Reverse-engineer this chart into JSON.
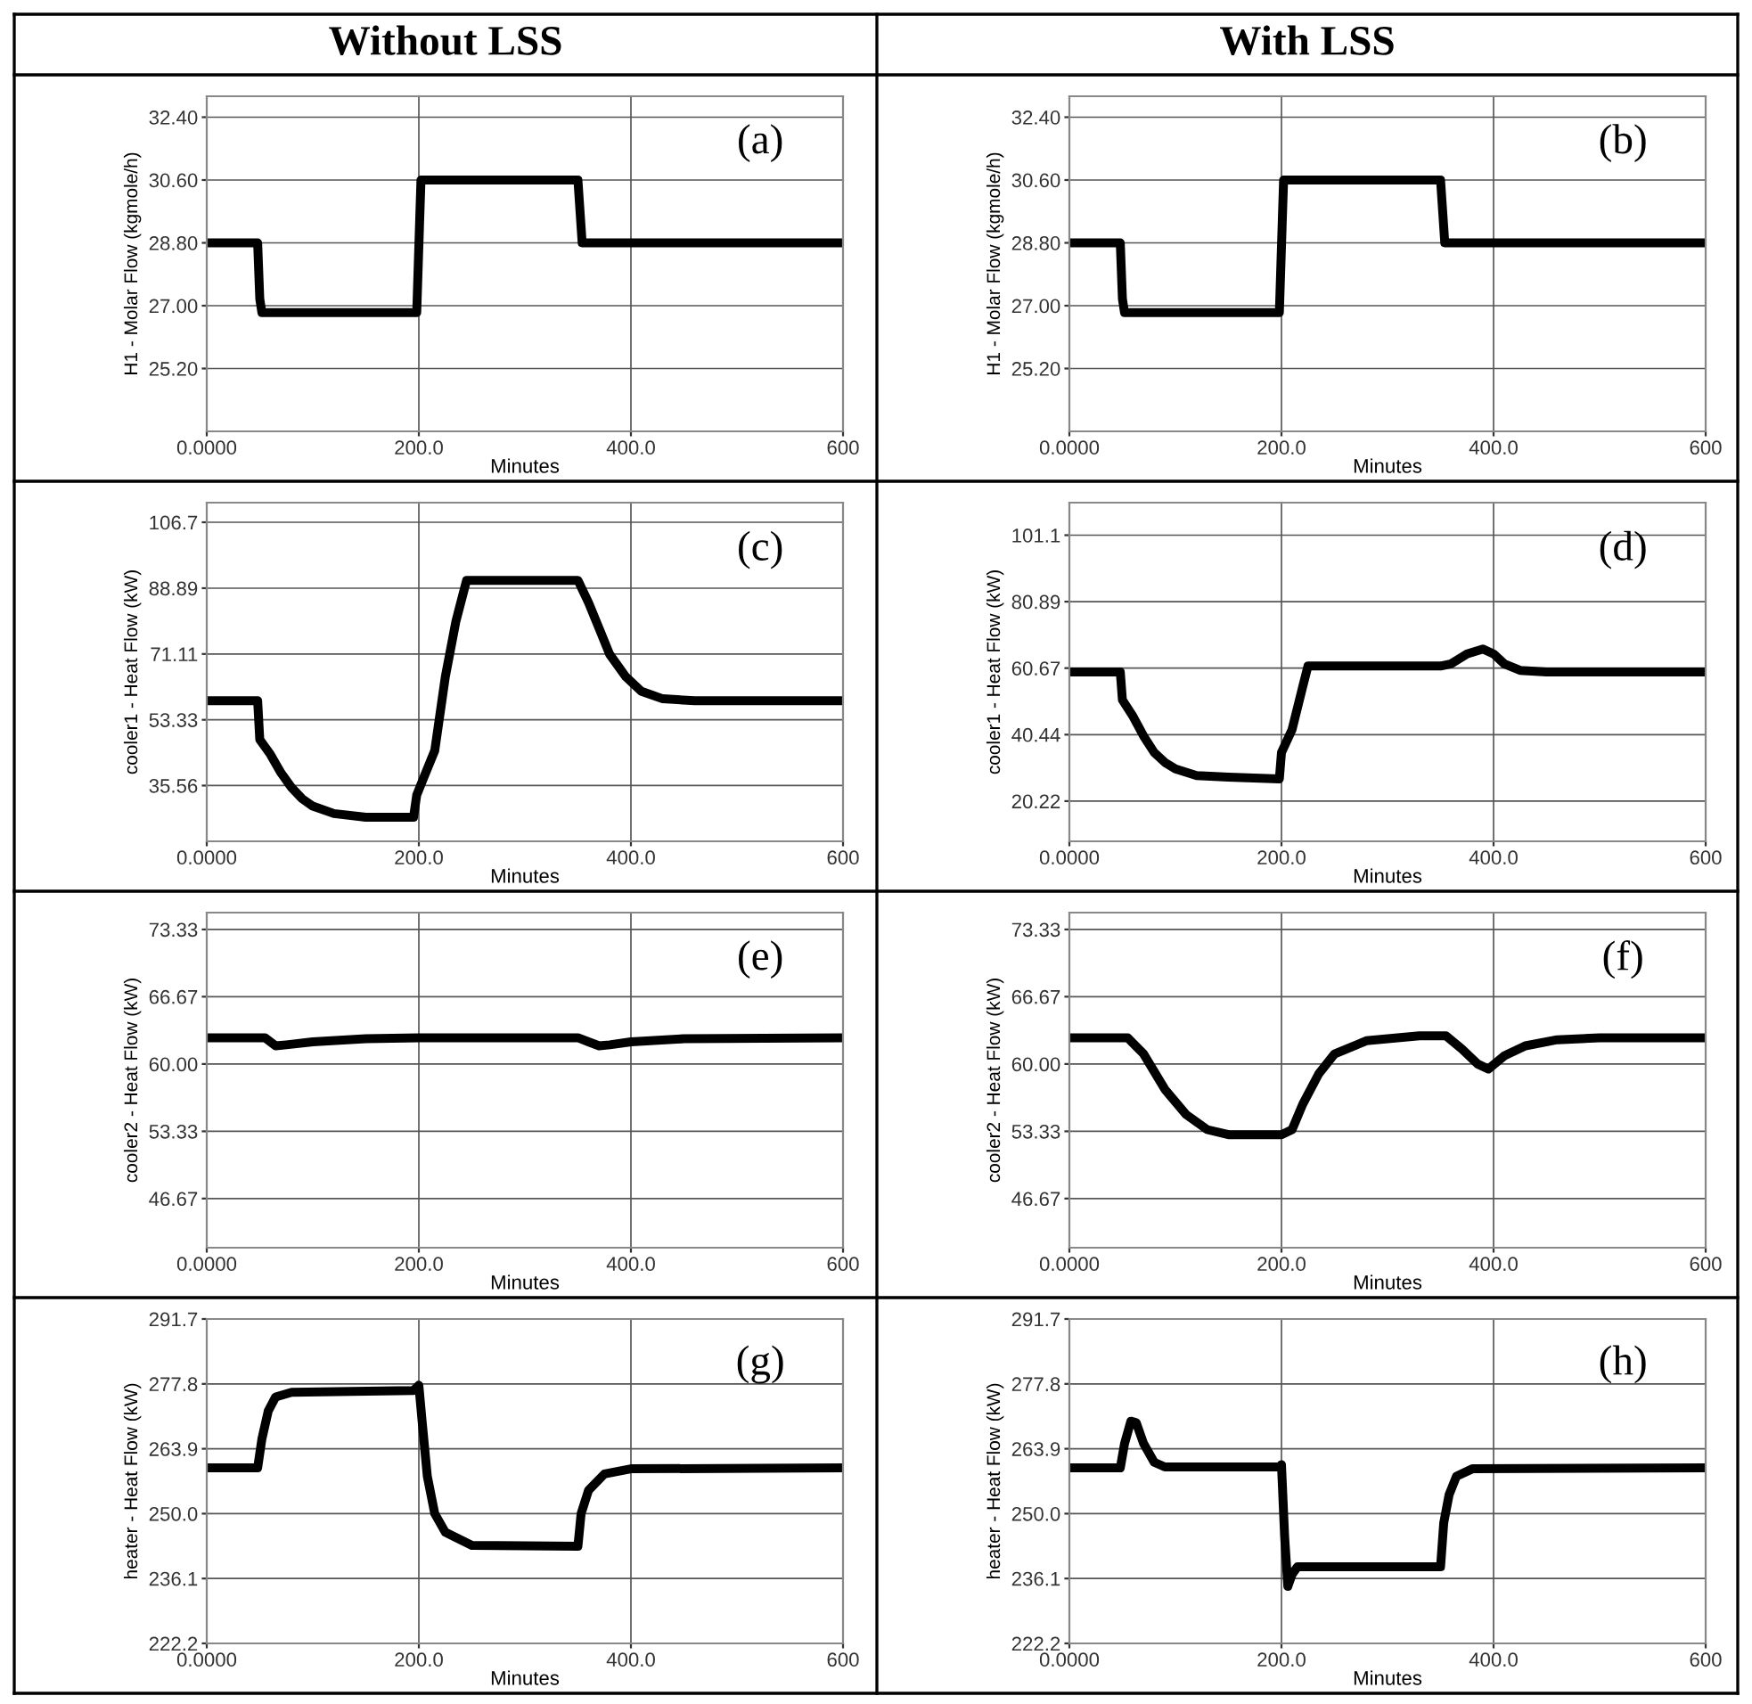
{
  "chart_data": [
    {
      "type": "line",
      "title": "Without LSS",
      "xlabel": "Minutes",
      "ylabel": "H1 - Molar Flow (kgmole/h)",
      "annotations": [
        "(a)"
      ],
      "xlim": [
        0,
        600
      ],
      "xticks": [
        {
          "value": 0,
          "label": "0.0000"
        },
        {
          "value": 200,
          "label": "200.0"
        },
        {
          "value": 400,
          "label": "400.0"
        },
        600
      ],
      "ylim": [
        23.4,
        33.0
      ],
      "yticks": [
        {
          "value": 25.2,
          "label": "25.20"
        },
        {
          "value": 27,
          "label": "27.00"
        },
        {
          "value": 28.8,
          "label": "28.80"
        },
        {
          "value": 30.6,
          "label": "30.60"
        },
        {
          "value": 32.4,
          "label": "32.40"
        }
      ],
      "grid": true,
      "series": [
        {
          "color": "#000000",
          "x": [
            0,
            48,
            50,
            52,
            198,
            202,
            350,
            354,
            600
          ],
          "values": [
            28.8,
            28.8,
            27.2,
            26.8,
            26.8,
            30.6,
            30.6,
            28.8,
            28.8
          ]
        }
      ]
    },
    {
      "type": "line",
      "title": "With LSS",
      "xlabel": "Minutes",
      "ylabel": "H1 - Molar Flow (kgmole/h)",
      "annotations": [
        "(b)"
      ],
      "xlim": [
        0,
        600
      ],
      "xticks": [
        {
          "value": 0,
          "label": "0.0000"
        },
        {
          "value": 200,
          "label": "200.0"
        },
        {
          "value": 400,
          "label": "400.0"
        },
        600
      ],
      "ylim": [
        23.4,
        33.0
      ],
      "yticks": [
        {
          "value": 25.2,
          "label": "25.20"
        },
        {
          "value": 27,
          "label": "27.00"
        },
        {
          "value": 28.8,
          "label": "28.80"
        },
        {
          "value": 30.6,
          "label": "30.60"
        },
        {
          "value": 32.4,
          "label": "32.40"
        }
      ],
      "grid": true,
      "series": [
        {
          "color": "#000000",
          "x": [
            0,
            48,
            50,
            52,
            198,
            202,
            350,
            354,
            600
          ],
          "values": [
            28.8,
            28.8,
            27.2,
            26.8,
            26.8,
            30.6,
            30.6,
            28.8,
            28.8
          ]
        }
      ]
    },
    {
      "type": "line",
      "xlabel": "Minutes",
      "ylabel": "cooler1 - Heat Flow (kW)",
      "annotations": [
        "(c)"
      ],
      "xlim": [
        0,
        600
      ],
      "xticks": [
        {
          "value": 0,
          "label": "0.0000"
        },
        {
          "value": 200,
          "label": "200.0"
        },
        {
          "value": 400,
          "label": "400.0"
        },
        600
      ],
      "ylim": [
        20.5,
        112
      ],
      "yticks": [
        35.56,
        53.33,
        71.11,
        88.89,
        106.7
      ],
      "grid": true,
      "series": [
        {
          "color": "#000000",
          "x": [
            0,
            48,
            50,
            60,
            70,
            80,
            90,
            100,
            120,
            150,
            195,
            198,
            205,
            215,
            225,
            235,
            245,
            350,
            360,
            370,
            380,
            395,
            410,
            430,
            460,
            600
          ],
          "values": [
            58.5,
            58.5,
            48,
            44,
            39,
            35,
            32,
            30,
            28,
            27,
            27,
            33,
            38,
            45,
            65,
            80,
            91,
            91,
            85,
            78,
            71,
            65,
            61,
            59,
            58.5,
            58.5
          ]
        }
      ]
    },
    {
      "type": "line",
      "xlabel": "Minutes",
      "ylabel": "cooler1 - Heat Flow (kW)",
      "annotations": [
        "(d)"
      ],
      "xlim": [
        0,
        600
      ],
      "xticks": [
        {
          "value": 0,
          "label": "0.0000"
        },
        {
          "value": 200,
          "label": "200.0"
        },
        {
          "value": 400,
          "label": "400.0"
        },
        600
      ],
      "ylim": [
        8,
        111
      ],
      "yticks": [
        20.22,
        40.44,
        60.67,
        80.89,
        101.1
      ],
      "grid": true,
      "series": [
        {
          "color": "#000000",
          "x": [
            0,
            48,
            50,
            60,
            70,
            80,
            90,
            100,
            120,
            150,
            198,
            200,
            210,
            220,
            225,
            350,
            360,
            375,
            390,
            400,
            410,
            425,
            450,
            600
          ],
          "values": [
            59.5,
            59.5,
            51,
            46,
            40,
            35,
            32,
            30,
            28,
            27.5,
            27,
            35,
            42,
            55,
            61.3,
            61.3,
            62,
            65,
            66.5,
            65,
            62,
            60,
            59.5,
            59.5
          ]
        }
      ]
    },
    {
      "type": "line",
      "xlabel": "Minutes",
      "ylabel": "cooler2 - Heat Flow (kW)",
      "annotations": [
        "(e)"
      ],
      "xlim": [
        0,
        600
      ],
      "xticks": [
        {
          "value": 0,
          "label": "0.0000"
        },
        {
          "value": 200,
          "label": "200.0"
        },
        {
          "value": 400,
          "label": "400.0"
        },
        600
      ],
      "ylim": [
        41.8,
        75
      ],
      "yticks": [
        46.67,
        53.33,
        {
          "value": 60,
          "label": "60.00"
        },
        66.67,
        73.33
      ],
      "grid": true,
      "series": [
        {
          "color": "#000000",
          "x": [
            0,
            55,
            65,
            75,
            100,
            150,
            200,
            350,
            360,
            370,
            380,
            400,
            450,
            600
          ],
          "values": [
            62.6,
            62.6,
            61.8,
            61.9,
            62.2,
            62.5,
            62.6,
            62.6,
            62.2,
            61.8,
            61.9,
            62.2,
            62.5,
            62.6
          ]
        }
      ]
    },
    {
      "type": "line",
      "xlabel": "Minutes",
      "ylabel": "cooler2 - Heat Flow (kW)",
      "annotations": [
        "(f)"
      ],
      "xlim": [
        0,
        600
      ],
      "xticks": [
        {
          "value": 0,
          "label": "0.0000"
        },
        {
          "value": 200,
          "label": "200.0"
        },
        {
          "value": 400,
          "label": "400.0"
        },
        600
      ],
      "ylim": [
        41.8,
        75
      ],
      "yticks": [
        46.67,
        53.33,
        {
          "value": 60,
          "label": "60.00"
        },
        66.67,
        73.33
      ],
      "grid": true,
      "series": [
        {
          "color": "#000000",
          "x": [
            0,
            55,
            70,
            90,
            110,
            130,
            150,
            200,
            210,
            220,
            235,
            250,
            280,
            330,
            355,
            370,
            385,
            395,
            410,
            430,
            460,
            500,
            600
          ],
          "values": [
            62.6,
            62.6,
            61,
            57.5,
            55,
            53.5,
            53,
            53,
            53.5,
            56,
            59,
            61,
            62.3,
            62.8,
            62.8,
            61.5,
            60,
            59.5,
            60.8,
            61.8,
            62.4,
            62.6,
            62.6
          ]
        }
      ]
    },
    {
      "type": "line",
      "xlabel": "Minutes",
      "ylabel": "heater - Heat Flow (kW)",
      "annotations": [
        "(g)"
      ],
      "xlim": [
        0,
        600
      ],
      "xticks": [
        {
          "value": 0,
          "label": "0.0000"
        },
        {
          "value": 200,
          "label": "200.0"
        },
        {
          "value": 400,
          "label": "400.0"
        },
        600
      ],
      "ylim": [
        222.2,
        291.7
      ],
      "yticks": [
        222.2,
        236.1,
        {
          "value": 250,
          "label": "250.0"
        },
        263.9,
        277.8,
        291.7
      ],
      "grid": true,
      "series": [
        {
          "color": "#000000",
          "x": [
            0,
            48,
            52,
            58,
            65,
            80,
            195,
            200,
            203,
            208,
            215,
            225,
            250,
            350,
            353,
            360,
            375,
            400,
            600
          ],
          "values": [
            259.8,
            259.8,
            266,
            272,
            275,
            276,
            276.4,
            277.5,
            270,
            258,
            250,
            246,
            243.2,
            243,
            250,
            255,
            258.5,
            259.6,
            259.8
          ]
        }
      ]
    },
    {
      "type": "line",
      "xlabel": "Minutes",
      "ylabel": "heater - Heat Flow (kW)",
      "annotations": [
        "(h)"
      ],
      "xlim": [
        0,
        600
      ],
      "xticks": [
        {
          "value": 0,
          "label": "0.0000"
        },
        {
          "value": 200,
          "label": "200.0"
        },
        {
          "value": 400,
          "label": "400.0"
        },
        600
      ],
      "ylim": [
        222.2,
        291.7
      ],
      "yticks": [
        222.2,
        236.1,
        {
          "value": 250,
          "label": "250.0"
        },
        263.9,
        277.8,
        291.7
      ],
      "grid": true,
      "series": [
        {
          "color": "#000000",
          "x": [
            0,
            48,
            52,
            58,
            63,
            70,
            80,
            90,
            198,
            200,
            203,
            206,
            210,
            215,
            350,
            353,
            358,
            365,
            380,
            600
          ],
          "values": [
            259.8,
            259.8,
            265,
            269.8,
            269.5,
            265,
            261,
            260,
            260,
            260.5,
            245,
            234.4,
            237,
            238.6,
            238.6,
            248,
            254,
            258,
            259.6,
            259.8
          ]
        }
      ]
    }
  ]
}
